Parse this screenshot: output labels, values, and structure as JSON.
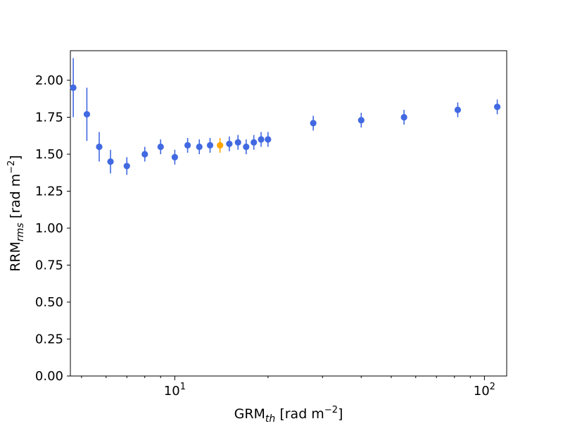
{
  "chart_data": {
    "type": "scatter",
    "title": "",
    "xlabel": {
      "base": "GRM",
      "sub": "th",
      "unit_prefix": " [rad m",
      "unit_sup": "−2",
      "unit_suffix": "]"
    },
    "ylabel": {
      "base": "RRM",
      "sub": "rms",
      "unit_prefix": " [rad m",
      "unit_sup": "−2",
      "unit_suffix": "]"
    },
    "xscale": "log",
    "xlim": [
      4.6,
      118
    ],
    "ylim": [
      0.0,
      2.2
    ],
    "xticks": [
      {
        "value": 10,
        "base": "10",
        "exp": "1"
      },
      {
        "value": 100,
        "base": "10",
        "exp": "2"
      }
    ],
    "xminor": [
      5,
      6,
      7,
      8,
      9,
      20,
      30,
      40,
      50,
      60,
      70,
      80,
      90
    ],
    "yticks": [
      {
        "value": 0.0,
        "label": "0.00"
      },
      {
        "value": 0.25,
        "label": "0.25"
      },
      {
        "value": 0.5,
        "label": "0.50"
      },
      {
        "value": 0.75,
        "label": "0.75"
      },
      {
        "value": 1.0,
        "label": "1.00"
      },
      {
        "value": 1.25,
        "label": "1.25"
      },
      {
        "value": 1.5,
        "label": "1.50"
      },
      {
        "value": 1.75,
        "label": "1.75"
      },
      {
        "value": 2.0,
        "label": "2.00"
      }
    ],
    "grid": false,
    "colors": {
      "primary": "#4169e1",
      "highlight": "#ffa500"
    },
    "series": [
      {
        "color": "#4169e1",
        "points": [
          {
            "x": 4.7,
            "y": 1.95,
            "err": 0.2
          },
          {
            "x": 5.2,
            "y": 1.77,
            "err": 0.18
          },
          {
            "x": 5.7,
            "y": 1.55,
            "err": 0.1
          },
          {
            "x": 6.2,
            "y": 1.45,
            "err": 0.08
          },
          {
            "x": 7.0,
            "y": 1.42,
            "err": 0.06
          },
          {
            "x": 8.0,
            "y": 1.5,
            "err": 0.05
          },
          {
            "x": 9.0,
            "y": 1.55,
            "err": 0.05
          },
          {
            "x": 10.0,
            "y": 1.48,
            "err": 0.05
          },
          {
            "x": 11.0,
            "y": 1.56,
            "err": 0.05
          },
          {
            "x": 12.0,
            "y": 1.55,
            "err": 0.05
          },
          {
            "x": 13.0,
            "y": 1.56,
            "err": 0.05
          },
          {
            "x": 15.0,
            "y": 1.57,
            "err": 0.05
          },
          {
            "x": 16.0,
            "y": 1.58,
            "err": 0.05
          },
          {
            "x": 17.0,
            "y": 1.55,
            "err": 0.05
          },
          {
            "x": 18.0,
            "y": 1.58,
            "err": 0.05
          },
          {
            "x": 19.0,
            "y": 1.6,
            "err": 0.05
          },
          {
            "x": 20.0,
            "y": 1.6,
            "err": 0.05
          },
          {
            "x": 28.0,
            "y": 1.71,
            "err": 0.05
          },
          {
            "x": 40.0,
            "y": 1.73,
            "err": 0.05
          },
          {
            "x": 55.0,
            "y": 1.75,
            "err": 0.05
          },
          {
            "x": 82.0,
            "y": 1.8,
            "err": 0.05
          },
          {
            "x": 110.0,
            "y": 1.82,
            "err": 0.05
          }
        ]
      },
      {
        "color": "#ffa500",
        "points": [
          {
            "x": 14.0,
            "y": 1.56,
            "err": 0.05
          }
        ]
      }
    ]
  }
}
